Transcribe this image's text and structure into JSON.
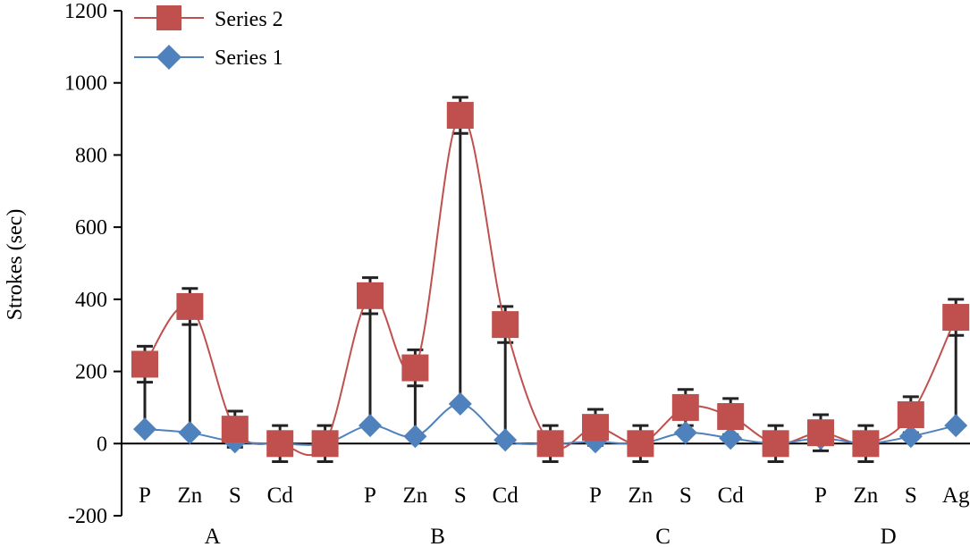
{
  "chart_data": {
    "type": "line",
    "ylabel": "Strokes (sec)",
    "ylim": [
      -200,
      1200
    ],
    "yticks": [
      -200,
      0,
      200,
      400,
      600,
      800,
      1000,
      1200
    ],
    "groups": [
      {
        "name": "A",
        "labels": [
          "P",
          "Zn",
          "S",
          "Cd"
        ]
      },
      {
        "name": "B",
        "labels": [
          "",
          "P",
          "Zn",
          "S",
          "Cd"
        ]
      },
      {
        "name": "C",
        "labels": [
          "",
          "P",
          "Zn",
          "S",
          "Cd"
        ]
      },
      {
        "name": "D",
        "labels": [
          "",
          "P",
          "Zn",
          "S",
          "Ag"
        ]
      }
    ],
    "x_labels": [
      "P",
      "Zn",
      "S",
      "Cd",
      "",
      "P",
      "Zn",
      "S",
      "Cd",
      "",
      "P",
      "Zn",
      "S",
      "Cd",
      "",
      "P",
      "Zn",
      "S",
      "Ag"
    ],
    "series": [
      {
        "name": "Series 2",
        "color": "#c0504d",
        "marker": "square",
        "values": [
          220,
          380,
          40,
          0,
          0,
          410,
          210,
          910,
          330,
          0,
          45,
          0,
          100,
          75,
          0,
          30,
          0,
          80,
          350
        ],
        "error": [
          50,
          50,
          50,
          50,
          50,
          50,
          50,
          50,
          50,
          50,
          50,
          50,
          50,
          50,
          50,
          50,
          50,
          50,
          50
        ]
      },
      {
        "name": "Series 1",
        "color": "#4f81bd",
        "marker": "diamond",
        "values": [
          40,
          30,
          5,
          0,
          0,
          50,
          20,
          110,
          10,
          0,
          5,
          0,
          30,
          15,
          0,
          15,
          0,
          20,
          50
        ]
      }
    ],
    "legend_position": "top-left",
    "grid": false
  }
}
